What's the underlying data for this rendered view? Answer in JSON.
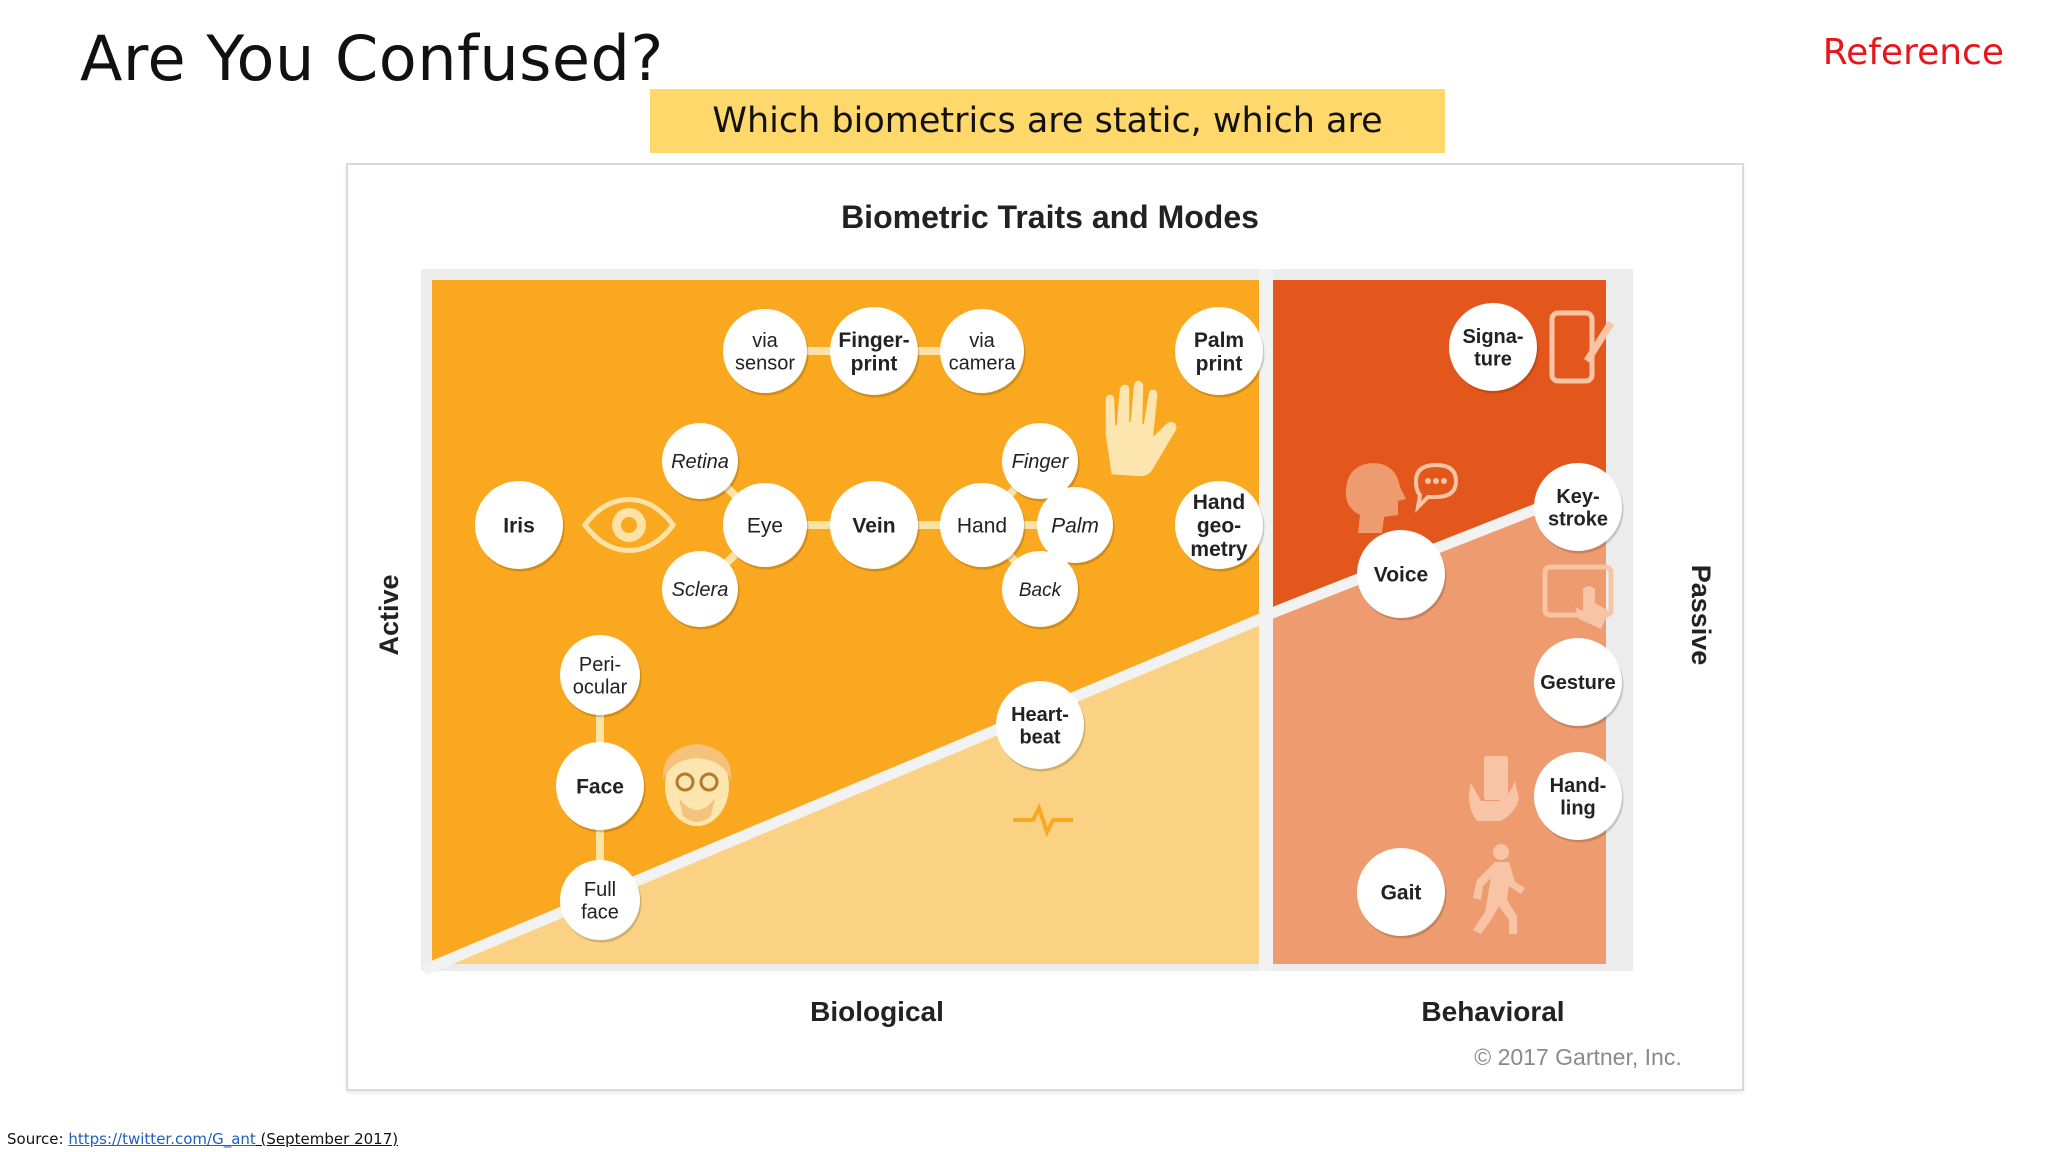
{
  "slide": {
    "title": "Are You Confused?",
    "reference_label": "Reference",
    "callout_text": "Which biometrics are static, which are dynamic?"
  },
  "diagram": {
    "title": "Biometric Traits and Modes",
    "axis_left": "Active",
    "axis_right": "Passive",
    "column_biological": "Biological",
    "column_behavioral": "Behavioral",
    "copyright": "© 2017 Gartner, Inc.",
    "colors": {
      "biological_active": "#f9a81f",
      "biological_passive": "#fbd284",
      "behavioral_active": "#e4571c",
      "behavioral_passive": "#ee9c6f",
      "diagonal": "#f2f2f2",
      "node": "#ffffff",
      "icon_light": "#fde5b0",
      "icon_light_orange": "#f7c4a6"
    },
    "icons": [
      "eye-icon",
      "palm-icon",
      "face-person-icon",
      "heart-icon",
      "tablet-pen-icon",
      "speaking-head-icon",
      "touchscreen-tap-icon",
      "hand-holding-phone-icon",
      "walking-person-icon"
    ],
    "nodes": {
      "via_sensor": [
        "via",
        "sensor"
      ],
      "fingerprint": [
        "Finger-",
        "print"
      ],
      "via_camera": [
        "via",
        "camera"
      ],
      "palm_print": [
        "Palm",
        "print"
      ],
      "retina": [
        "Retina"
      ],
      "finger": [
        "Finger"
      ],
      "iris": [
        "Iris"
      ],
      "eye": [
        "Eye"
      ],
      "vein": [
        "Vein"
      ],
      "hand": [
        "Hand"
      ],
      "palm": [
        "Palm"
      ],
      "hand_geometry": [
        "Hand",
        "geo-",
        "metry"
      ],
      "sclera": [
        "Sclera"
      ],
      "back": [
        "Back"
      ],
      "periocular": [
        "Peri-",
        "ocular"
      ],
      "face": [
        "Face"
      ],
      "full_face": [
        "Full",
        "face"
      ],
      "heartbeat": [
        "Heart-",
        "beat"
      ],
      "signature": [
        "Signa-",
        "ture"
      ],
      "keystroke": [
        "Key-",
        "stroke"
      ],
      "voice": [
        "Voice"
      ],
      "gesture": [
        "Gesture"
      ],
      "handling": [
        "Hand-",
        "ling"
      ],
      "gait": [
        "Gait"
      ]
    }
  },
  "footer": {
    "source_prefix": "Source: ",
    "source_link": "https://twitter.com/G_ant",
    "source_suffix": " (September 2017)"
  }
}
